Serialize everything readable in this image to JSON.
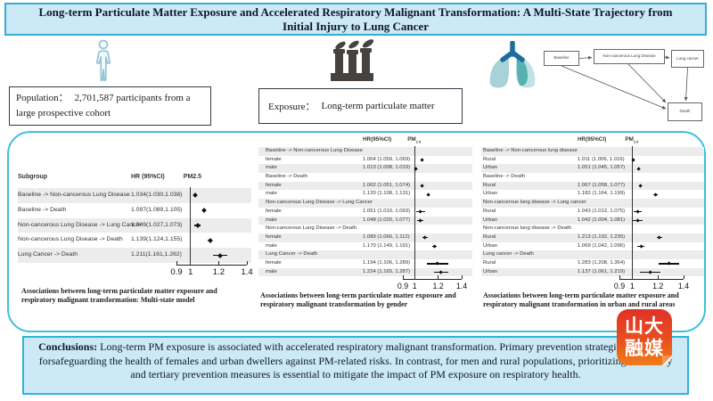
{
  "title": "Long-term Particulate Matter Exposure and Accelerated Respiratory Malignant Transformation: A Multi-State Trajectory from Initial Injury to Lung Cancer",
  "population": {
    "label": "Population：",
    "text": "2,701,587 participants from a large prospective cohort"
  },
  "exposure": {
    "label": "Exposure：",
    "text": "Long-term particulate matter"
  },
  "diagram": {
    "nodes": [
      "Baseline",
      "Non-cancerous Lung Disease",
      "Lung cancer",
      "Death"
    ]
  },
  "colors": {
    "accent": "#3cc0de",
    "panel_fill": "#cbe9f6",
    "marker": "#111111",
    "logo_red": "#e03228",
    "logo_orange": "#ef7d1a"
  },
  "chart_data": [
    {
      "type": "forest",
      "caption": "Associations between long-term particulate matter exposure and respiratory malignant transformation: Multi-state model",
      "header": {
        "subgroup": "Subgroup",
        "hr": "HR (95%CI)",
        "pm": "PM2.5"
      },
      "xlim": [
        0.9,
        1.4
      ],
      "xticks": [
        "0.9",
        "1",
        "1.2",
        "1.4"
      ],
      "xtick_values": [
        0.9,
        1,
        1.2,
        1.4
      ],
      "refline": 1,
      "rows": [
        {
          "label": "Baseline -> Non-cancerous Lung Disease",
          "hr": "1.034(1.030,1.038)",
          "est": 1.034,
          "lo": 1.03,
          "hi": 1.038
        },
        {
          "label": "Baseline -> Death",
          "hr": "1.097(1.089,1.105)",
          "est": 1.097,
          "lo": 1.089,
          "hi": 1.105
        },
        {
          "label": "Non-cancerous Lung Disease -> Lung Cancer",
          "hr": "1.049(1.027,1.073)",
          "est": 1.049,
          "lo": 1.027,
          "hi": 1.073
        },
        {
          "label": "Non-cancerous Lung Disease -> Death",
          "hr": "1.139(1.124,1.155)",
          "est": 1.139,
          "lo": 1.124,
          "hi": 1.155
        },
        {
          "label": "Lung Cancer -> Death",
          "hr": "1.211(1.161,1.262)",
          "est": 1.211,
          "lo": 1.161,
          "hi": 1.262
        }
      ]
    },
    {
      "type": "forest",
      "caption": "Associations between long-term particulate matter exposure and respiratory malignant transformation by gender",
      "header": {
        "hr": "HR(95%CI)",
        "pm_base": "PM",
        "pm_sub": "2.5"
      },
      "xlim": [
        0.9,
        1.4
      ],
      "xticks": [
        "0.9",
        "1",
        "1.2",
        "1.4"
      ],
      "xtick_values": [
        0.9,
        1,
        1.2,
        1.4
      ],
      "refline": 1,
      "rows": [
        {
          "group": "Baseline -> Non-cancerous Lung Disease"
        },
        {
          "label": "female",
          "hr": "1.064 (1.059, 1.069)",
          "est": 1.064,
          "lo": 1.059,
          "hi": 1.069
        },
        {
          "label": "male",
          "hr": "1.013 (1.008, 1.019)",
          "est": 1.013,
          "lo": 1.008,
          "hi": 1.019
        },
        {
          "group": "Baseline -> Death"
        },
        {
          "label": "female",
          "hr": "1.062 (1.051, 1.074)",
          "est": 1.062,
          "lo": 1.051,
          "hi": 1.074
        },
        {
          "label": "male",
          "hr": "1.120 (1.108, 1.131)",
          "est": 1.12,
          "lo": 1.108,
          "hi": 1.131
        },
        {
          "group": "Non-cancerous Lung Disease -> Lung Cancer"
        },
        {
          "label": "female",
          "hr": "1.051 (1.010, 1.093)",
          "est": 1.051,
          "lo": 1.01,
          "hi": 1.093
        },
        {
          "label": "male",
          "hr": "1.048 (1.020, 1.077)",
          "est": 1.048,
          "lo": 1.02,
          "hi": 1.077
        },
        {
          "group": "Non-cancerous Lung Disease -> Death"
        },
        {
          "label": "female",
          "hr": "1.089 (1.066, 1.112)",
          "est": 1.089,
          "lo": 1.066,
          "hi": 1.112
        },
        {
          "label": "male",
          "hr": "1.170 (1.149, 1.191)",
          "est": 1.17,
          "lo": 1.149,
          "hi": 1.191
        },
        {
          "group": "Lung Cancer -> Death"
        },
        {
          "label": "female",
          "hr": "1.194 (1.106, 1.289)",
          "est": 1.194,
          "lo": 1.106,
          "hi": 1.289
        },
        {
          "label": "male",
          "hr": "1.224 (1.165, 1.287)",
          "est": 1.224,
          "lo": 1.165,
          "hi": 1.287
        }
      ]
    },
    {
      "type": "forest",
      "caption": "Associations between long-term particulate matter exposure and respiratory malignant transformation in urban and rural areas",
      "header": {
        "hr": "HR(95%CI)",
        "pm_base": "PM",
        "pm_sub": "2.5"
      },
      "xlim": [
        0.9,
        1.4
      ],
      "xticks": [
        "0.9",
        "1",
        "1.2",
        "1.4"
      ],
      "xtick_values": [
        0.9,
        1,
        1.2,
        1.4
      ],
      "refline": 1,
      "rows": [
        {
          "group": "Baseline -> Non-cancerous lung disease"
        },
        {
          "label": "Rural",
          "hr": "1.011 (1.006, 1.016)",
          "est": 1.011,
          "lo": 1.006,
          "hi": 1.016
        },
        {
          "label": "Urban",
          "hr": "1.051 (1.045, 1.057)",
          "est": 1.051,
          "lo": 1.045,
          "hi": 1.057
        },
        {
          "group": "Baseline -> Death"
        },
        {
          "label": "Rural",
          "hr": "1.067 (1.058, 1.077)",
          "est": 1.067,
          "lo": 1.058,
          "hi": 1.077
        },
        {
          "label": "Urban",
          "hr": "1.182 (1.164, 1.199)",
          "est": 1.182,
          "lo": 1.164,
          "hi": 1.199
        },
        {
          "group": "Non-cancerous lung disease -> Lung cancer"
        },
        {
          "label": "Rural",
          "hr": "1.043 (1.012, 1.075)",
          "est": 1.043,
          "lo": 1.012,
          "hi": 1.075
        },
        {
          "label": "Urban",
          "hr": "1.042 (1.004, 1.081)",
          "est": 1.042,
          "lo": 1.004,
          "hi": 1.081
        },
        {
          "group": "Non-cancerous lung disease -> Death"
        },
        {
          "label": "Rural",
          "hr": "1.213 (1.192, 1.235)",
          "est": 1.213,
          "lo": 1.192,
          "hi": 1.235
        },
        {
          "label": "Urban",
          "hr": "1.069 (1.042, 1.096)",
          "est": 1.069,
          "lo": 1.042,
          "hi": 1.096
        },
        {
          "group": "Lung cancer -> Death"
        },
        {
          "label": "Rural",
          "hr": "1.283 (1.208, 1.364)",
          "est": 1.283,
          "lo": 1.208,
          "hi": 1.364
        },
        {
          "label": "Urban",
          "hr": "1.137 (1.061, 1.219)",
          "est": 1.137,
          "lo": 1.061,
          "hi": 1.219
        }
      ]
    }
  ],
  "conclusions": {
    "label": "Conclusions:",
    "text": " Long-term PM exposure is associated with accelerated respiratory malignant transformation. Primary prevention strategies are crucial forsafeguarding the health of females and urban dwellers against PM-related risks. In contrast, for men and rural populations, prioritizing secondary and tertiary prevention measures is essential to mitigate the impact of PM exposure on respiratory health."
  },
  "logo": {
    "line1": "山大",
    "line2": "融媒"
  }
}
